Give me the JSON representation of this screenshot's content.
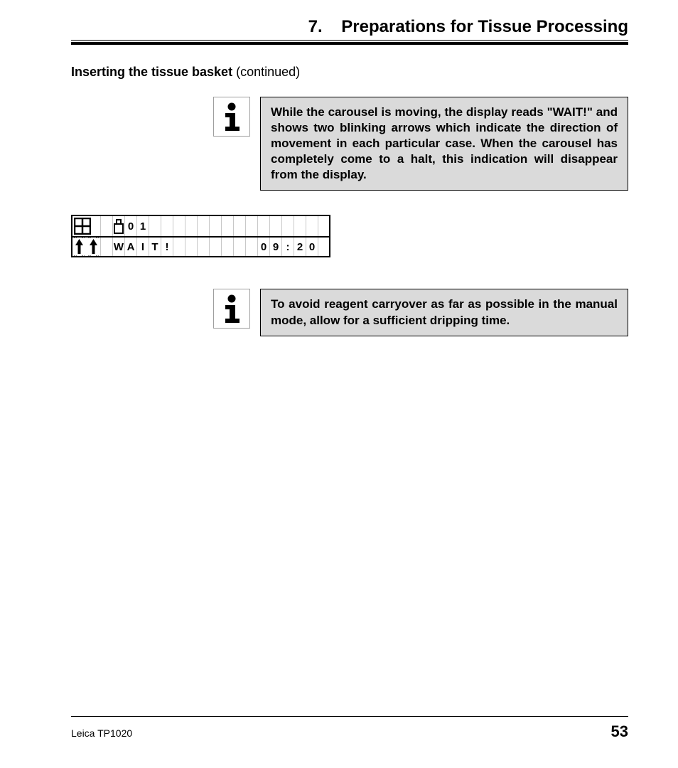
{
  "header": {
    "chapter_number": "7.",
    "chapter_title": "Preparations for Tissue Processing"
  },
  "section": {
    "title_bold": "Inserting the tissue basket",
    "title_rest": " (continued)"
  },
  "info_box_1": {
    "text": "While the carousel is moving, the display reads \"WAIT!\" and shows two blinking arrows which indicate the direction of movement in each particular case. When the carousel has completely come to a halt, this indication will disappear from the display.",
    "background_color": "#dadada",
    "border_color": "#000000"
  },
  "lcd": {
    "row1": [
      "",
      "",
      "",
      "0",
      "1",
      "",
      "",
      "",
      "",
      "",
      "",
      "",
      "",
      "",
      "",
      "",
      "",
      "",
      "",
      ""
    ],
    "row2": [
      "",
      "",
      "W",
      "A",
      "I",
      "T",
      "!",
      "",
      "",
      "",
      "",
      "",
      "",
      "",
      "0",
      "9",
      ":",
      "2",
      "0",
      ""
    ],
    "icon_row1_col1": "grid",
    "icon_row1_col3": "basket",
    "icon_row2_col1": "up-arrow-dashed",
    "icon_row2_col2": "up-arrow-dashed"
  },
  "info_box_2": {
    "text": "To avoid reagent carryover as far as possible in the manual mode, allow for a sufficient dripping time.",
    "background_color": "#dadada",
    "border_color": "#000000"
  },
  "footer": {
    "product": "Leica TP1020",
    "page_number": "53"
  },
  "colors": {
    "page_bg": "#ffffff",
    "text": "#000000",
    "info_bg": "#dadada",
    "lcd_grid": "#c8c8c8",
    "icon_border": "#9e9e9e"
  },
  "typography": {
    "header_fontsize": 24,
    "section_fontsize": 18,
    "info_fontsize": 17,
    "lcd_fontsize": 15,
    "footer_left_fontsize": 14,
    "footer_right_fontsize": 22,
    "font_family": "Helvetica Condensed"
  }
}
